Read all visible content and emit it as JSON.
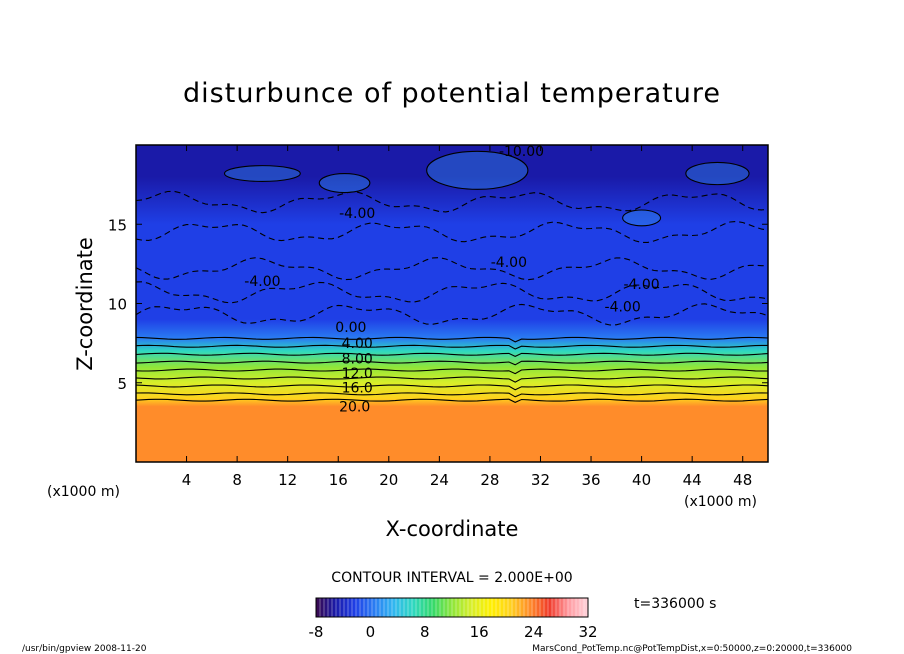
{
  "chart_data": {
    "type": "heatmap",
    "title": "disturbunce of potential temperature",
    "xlabel": "X-coordinate",
    "ylabel": "Z-coordinate",
    "x_unit_left": "(x1000 m)",
    "x_unit_right": "(x1000 m)",
    "xlim": [
      0,
      50
    ],
    "ylim": [
      0,
      20
    ],
    "x_ticks": [
      4,
      8,
      12,
      16,
      20,
      24,
      28,
      32,
      36,
      40,
      44,
      48
    ],
    "y_ticks": [
      5,
      10,
      15
    ],
    "contour_interval_text": "CONTOUR INTERVAL = 2.000E+00",
    "time_text": "t=336000 s",
    "colorbar": {
      "min": -8,
      "max": 32,
      "ticks": [
        -8,
        0,
        8,
        16,
        24,
        32
      ]
    },
    "field_profile": {
      "description_z": [
        0,
        3.5,
        4.0,
        5,
        6,
        7,
        7.8,
        9,
        12,
        15,
        18,
        20
      ],
      "values": [
        22,
        22,
        20,
        16,
        11,
        6,
        1,
        -2,
        -3,
        -2.5,
        -4,
        -4
      ]
    },
    "contour_labels": [
      {
        "text": "-10.00",
        "x": 30.5,
        "z": 19.3
      },
      {
        "text": "-4.00",
        "x": 17.5,
        "z": 15.4
      },
      {
        "text": "-4.00",
        "x": 29.5,
        "z": 12.3
      },
      {
        "text": "-4.00",
        "x": 10.0,
        "z": 11.1
      },
      {
        "text": "-4.00",
        "x": 40.0,
        "z": 10.9
      },
      {
        "text": "-4.00",
        "x": 38.5,
        "z": 9.5
      },
      {
        "text": "0.00",
        "x": 17.0,
        "z": 8.2
      },
      {
        "text": "4.00",
        "x": 17.5,
        "z": 7.2
      },
      {
        "text": "8.00",
        "x": 17.5,
        "z": 6.2
      },
      {
        "text": "12.0",
        "x": 17.5,
        "z": 5.3
      },
      {
        "text": "16.0",
        "x": 17.5,
        "z": 4.4
      },
      {
        "text": "20.0",
        "x": 17.3,
        "z": 3.2
      }
    ],
    "colors": {
      "scale": [
        "#3a0a4e",
        "#1a1aa8",
        "#1f3fe6",
        "#2a7cf2",
        "#31b7f0",
        "#2fd8c0",
        "#33d96a",
        "#8ee63a",
        "#d8ee2a",
        "#fff000",
        "#ffd21e",
        "#ff8c2a",
        "#f03a2a",
        "#ff9aa0",
        "#ffd4dc"
      ]
    }
  },
  "footer": {
    "left": "/usr/bin/gpview  2008-11-20",
    "right": "MarsCond_PotTemp.nc@PotTempDist,x=0:50000,z=0:20000,t=336000"
  }
}
